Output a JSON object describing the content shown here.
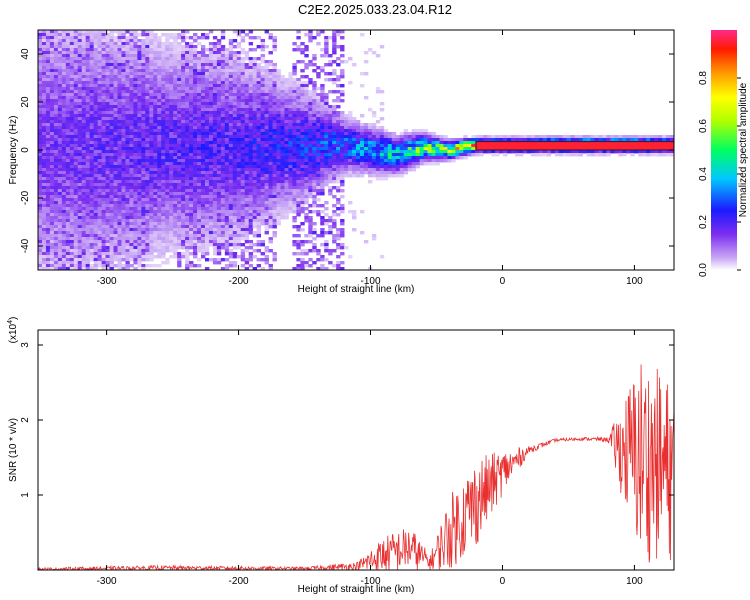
{
  "title": "C2E2.2025.033.23.04.R12",
  "chart_data": [
    {
      "type": "heatmap",
      "xlabel": "Height of straight line (km)",
      "ylabel": "Frequency (Hz)",
      "xlim": [
        -352,
        130
      ],
      "ylim": [
        -50,
        50
      ],
      "x_ticks": [
        -300,
        -200,
        -100,
        0,
        100
      ],
      "y_ticks": [
        -40,
        -20,
        0,
        20,
        40
      ],
      "colorbar": {
        "label": "Normalized spectral amplitude",
        "range": [
          0,
          1
        ],
        "ticks": [
          "0.0",
          "0.2",
          "0.4",
          "0.6",
          "0.8"
        ]
      },
      "ridge": [
        {
          "x": -352,
          "center": 1,
          "spread": 30,
          "amp": 0.15
        },
        {
          "x": -270,
          "center": 1,
          "spread": 25,
          "amp": 0.18
        },
        {
          "x": -200,
          "center": 1,
          "spread": 20,
          "amp": 0.2
        },
        {
          "x": -150,
          "center": 2,
          "spread": 12,
          "amp": 0.25
        },
        {
          "x": -120,
          "center": 2,
          "spread": 6,
          "amp": 0.3
        },
        {
          "x": -100,
          "center": 0,
          "spread": 5,
          "amp": 0.35
        },
        {
          "x": -80,
          "center": -2,
          "spread": 4,
          "amp": 0.45
        },
        {
          "x": -60,
          "center": 1,
          "spread": 3,
          "amp": 0.55
        },
        {
          "x": -40,
          "center": 0,
          "spread": 2,
          "amp": 0.6
        },
        {
          "x": -20,
          "center": 2,
          "spread": 1.5,
          "amp": 0.9
        },
        {
          "x": 130,
          "center": 2,
          "spread": 1.5,
          "amp": 1.0
        }
      ]
    },
    {
      "type": "line",
      "xlabel": "Height of straight line (km)",
      "ylabel": "SNR (10 * v/v)",
      "y_multiplier": "(x10",
      "y_multiplier_exp": "4",
      "xlim": [
        -352,
        130
      ],
      "ylim": [
        0,
        3.2
      ],
      "x_ticks": [
        -300,
        -200,
        -100,
        0,
        100
      ],
      "y_ticks": [
        1,
        2,
        3
      ],
      "series_color": "#e83030",
      "envelope": [
        {
          "x": -352,
          "y": 0.01,
          "noise": 0.02
        },
        {
          "x": -260,
          "y": 0.03,
          "noise": 0.03
        },
        {
          "x": -150,
          "y": 0.02,
          "noise": 0.02
        },
        {
          "x": -110,
          "y": 0.05,
          "noise": 0.06
        },
        {
          "x": -90,
          "y": 0.2,
          "noise": 0.25
        },
        {
          "x": -70,
          "y": 0.3,
          "noise": 0.3
        },
        {
          "x": -55,
          "y": 0.1,
          "noise": 0.1
        },
        {
          "x": -40,
          "y": 0.5,
          "noise": 0.5
        },
        {
          "x": -20,
          "y": 0.9,
          "noise": 0.6
        },
        {
          "x": 0,
          "y": 1.3,
          "noise": 0.3
        },
        {
          "x": 20,
          "y": 1.6,
          "noise": 0.05
        },
        {
          "x": 40,
          "y": 1.73,
          "noise": 0.02
        },
        {
          "x": 60,
          "y": 1.75,
          "noise": 0.02
        },
        {
          "x": 80,
          "y": 1.74,
          "noise": 0.03
        },
        {
          "x": 90,
          "y": 1.6,
          "noise": 0.6
        },
        {
          "x": 105,
          "y": 1.5,
          "noise": 1.4
        },
        {
          "x": 130,
          "y": 1.3,
          "noise": 1.2
        }
      ]
    }
  ]
}
